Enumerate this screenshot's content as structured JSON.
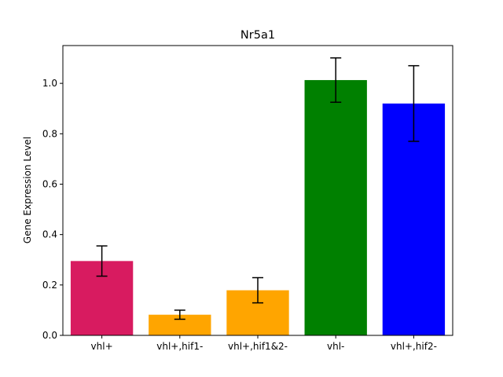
{
  "chart_data": {
    "type": "bar",
    "title": "Nr5a1",
    "xlabel": "",
    "ylabel": "Gene Expression Level",
    "categories": [
      "vhl+",
      "vhl+,hif1-",
      "vhl+,hif1&2-",
      "vhl-",
      "vhl+,hif2-"
    ],
    "values": [
      0.295,
      0.082,
      0.179,
      1.013,
      0.92
    ],
    "errors": [
      0.06,
      0.018,
      0.05,
      0.088,
      0.15
    ],
    "colors": [
      "#D81B60",
      "#FFA500",
      "#FFA500",
      "#008000",
      "#0000FF"
    ],
    "ylim": [
      0,
      1.15
    ],
    "yticks": [
      0.0,
      0.2,
      0.4,
      0.6,
      0.8,
      1.0
    ],
    "ytick_labels": [
      "0.0",
      "0.2",
      "0.4",
      "0.6",
      "0.8",
      "1.0"
    ],
    "grid": false,
    "error_bar_color": "#000000"
  }
}
